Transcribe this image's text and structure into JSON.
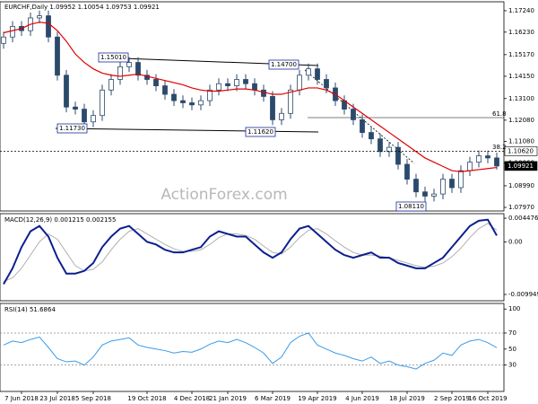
{
  "chart_data": [
    {
      "type": "candlestick",
      "title": "EURCHF,Daily  1.09952 1.10054 1.09753 1.09921",
      "color": "#2b4a6b",
      "watermark": "ActionForex.com",
      "open": [
        1.157,
        1.16,
        1.165,
        1.163,
        1.169,
        1.17,
        1.16,
        1.142,
        1.127,
        1.126,
        1.12,
        1.123,
        1.135,
        1.14,
        1.146,
        1.148,
        1.142,
        1.14,
        1.137,
        1.133,
        1.13,
        1.129,
        1.128,
        1.13,
        1.135,
        1.138,
        1.137,
        1.14,
        1.138,
        1.135,
        1.132,
        1.121,
        1.124,
        1.135,
        1.142,
        1.145,
        1.14,
        1.136,
        1.13,
        1.126,
        1.121,
        1.115,
        1.112,
        1.106,
        1.108,
        1.1,
        1.093,
        1.087,
        1.085,
        1.086,
        1.093,
        1.089,
        1.097,
        1.101,
        1.104,
        1.103
      ],
      "high": [
        1.1625,
        1.1675,
        1.1675,
        1.1715,
        1.1725,
        1.1725,
        1.1625,
        1.1445,
        1.1295,
        1.1285,
        1.1255,
        1.1375,
        1.1425,
        1.1485,
        1.1505,
        1.1505,
        1.1445,
        1.1425,
        1.1395,
        1.1355,
        1.1325,
        1.1315,
        1.1325,
        1.1375,
        1.1405,
        1.1405,
        1.1425,
        1.1425,
        1.1405,
        1.1375,
        1.1345,
        1.1265,
        1.1375,
        1.1445,
        1.1475,
        1.1475,
        1.1425,
        1.1385,
        1.1325,
        1.1285,
        1.1235,
        1.1175,
        1.1145,
        1.1105,
        1.1105,
        1.1025,
        1.0955,
        1.0895,
        1.0885,
        1.0955,
        1.0955,
        1.0995,
        1.1035,
        1.1065,
        1.1065,
        1.1055
      ],
      "low": [
        1.1545,
        1.1575,
        1.1605,
        1.1605,
        1.1665,
        1.1575,
        1.1395,
        1.1245,
        1.1235,
        1.1175,
        1.1175,
        1.1205,
        1.1325,
        1.1375,
        1.1435,
        1.1395,
        1.1375,
        1.1345,
        1.1305,
        1.1275,
        1.1265,
        1.1255,
        1.1255,
        1.1275,
        1.1325,
        1.1345,
        1.1345,
        1.1355,
        1.1325,
        1.1295,
        1.1185,
        1.1185,
        1.1215,
        1.1325,
        1.1395,
        1.1375,
        1.1335,
        1.1275,
        1.1235,
        1.1185,
        1.1125,
        1.1095,
        1.1035,
        1.1035,
        1.0975,
        1.0905,
        1.0845,
        1.0825,
        1.0825,
        1.0835,
        1.0865,
        1.0865,
        1.0945,
        1.0985,
        1.1005,
        1.0975
      ],
      "close": [
        1.16,
        1.165,
        1.163,
        1.169,
        1.17,
        1.16,
        1.142,
        1.127,
        1.126,
        1.12,
        1.123,
        1.135,
        1.14,
        1.146,
        1.148,
        1.142,
        1.14,
        1.137,
        1.133,
        1.13,
        1.129,
        1.128,
        1.13,
        1.135,
        1.138,
        1.137,
        1.14,
        1.138,
        1.135,
        1.132,
        1.121,
        1.124,
        1.135,
        1.142,
        1.145,
        1.14,
        1.136,
        1.13,
        1.126,
        1.121,
        1.115,
        1.112,
        1.106,
        1.108,
        1.1,
        1.093,
        1.087,
        1.085,
        1.086,
        1.093,
        1.089,
        1.097,
        1.101,
        1.104,
        1.103,
        1.0992
      ],
      "ma": {
        "color": "#e00000",
        "values": [
          1.162,
          1.163,
          1.164,
          1.166,
          1.167,
          1.1665,
          1.163,
          1.158,
          1.152,
          1.148,
          1.145,
          1.143,
          1.142,
          1.1415,
          1.142,
          1.1425,
          1.1415,
          1.1405,
          1.1395,
          1.1385,
          1.1375,
          1.136,
          1.135,
          1.1345,
          1.1345,
          1.135,
          1.1355,
          1.1355,
          1.135,
          1.134,
          1.133,
          1.133,
          1.134,
          1.135,
          1.136,
          1.136,
          1.135,
          1.133,
          1.13,
          1.127,
          1.124,
          1.121,
          1.118,
          1.115,
          1.112,
          1.109,
          1.106,
          1.103,
          1.101,
          1.099,
          1.097,
          1.0965,
          1.097,
          1.0975,
          1.098,
          1.0985
        ]
      },
      "ylim": [
        1.078,
        1.1766
      ],
      "yticks": [
        {
          "value": 1.0797,
          "label": "1.07970"
        },
        {
          "value": 1.0899,
          "label": "1.08990"
        },
        {
          "value": 1.1006,
          "label": "1.10060"
        },
        {
          "value": 1.1108,
          "label": "1.11080"
        },
        {
          "value": 1.1208,
          "label": "1.12080"
        },
        {
          "value": 1.131,
          "label": "1.13100"
        },
        {
          "value": 1.1415,
          "label": "1.14150"
        },
        {
          "value": 1.1517,
          "label": "1.15170"
        },
        {
          "value": 1.1623,
          "label": "1.16230"
        },
        {
          "value": 1.1724,
          "label": "1.17240"
        }
      ],
      "price_labels": [
        {
          "value": 1.1062,
          "label": "1.10620"
        },
        {
          "value": 1.09921,
          "label": "1.09921"
        }
      ],
      "annotations": [
        "1.15010",
        "1.14700",
        "1.11730",
        "1.11620",
        "1.08110",
        "61.8",
        "38.2"
      ]
    },
    {
      "type": "line",
      "title": "MACD(12,26,9) 0.001215 0.002155",
      "series": [
        {
          "color": "#0b1f8f",
          "values": [
            -0.008,
            -0.005,
            -0.001,
            0.002,
            0.003,
            0.001,
            -0.003,
            -0.006,
            -0.006,
            -0.0055,
            -0.004,
            -0.001,
            0.001,
            0.0025,
            0.003,
            0.0015,
            0.0,
            -0.0005,
            -0.0015,
            -0.002,
            -0.002,
            -0.0015,
            -0.001,
            0.001,
            0.002,
            0.0015,
            0.001,
            0.001,
            -0.0005,
            -0.002,
            -0.003,
            -0.002,
            0.0005,
            0.0025,
            0.003,
            0.0015,
            0.0,
            -0.0015,
            -0.0025,
            -0.003,
            -0.0025,
            -0.002,
            -0.003,
            -0.003,
            -0.004,
            -0.0045,
            -0.005,
            -0.005,
            -0.004,
            -0.003,
            -0.001,
            0.001,
            0.003,
            0.004,
            0.0042,
            0.0012
          ]
        },
        {
          "color": "#b0b0b0",
          "values": [
            -0.0075,
            -0.0068,
            -0.005,
            -0.0025,
            0.0,
            0.0015,
            0.0005,
            -0.002,
            -0.0045,
            -0.0055,
            -0.0052,
            -0.0038,
            -0.0015,
            0.0005,
            0.002,
            0.0025,
            0.0015,
            0.0005,
            -0.0005,
            -0.0013,
            -0.0018,
            -0.0018,
            -0.0015,
            -0.0005,
            0.0008,
            0.0015,
            0.0015,
            0.0012,
            0.0005,
            -0.0008,
            -0.002,
            -0.0023,
            -0.001,
            0.0008,
            0.0022,
            0.0025,
            0.0015,
            0.0002,
            -0.001,
            -0.002,
            -0.0025,
            -0.0025,
            -0.0027,
            -0.003,
            -0.0035,
            -0.004,
            -0.0045,
            -0.0048,
            -0.0046,
            -0.004,
            -0.0028,
            -0.0012,
            0.0008,
            0.0025,
            0.0035,
            0.0022
          ]
        }
      ],
      "ylim": [
        -0.01114,
        0.00533
      ],
      "yticks": [
        0.004476,
        {
          "value": 0,
          "label": "0.00"
        },
        -0.009949
      ]
    },
    {
      "type": "line",
      "title": "RSI(14) 51.6864",
      "series": [
        {
          "color": "#3a9be8",
          "values": [
            55,
            60,
            58,
            62,
            65,
            52,
            38,
            34,
            35,
            30,
            40,
            55,
            60,
            62,
            64,
            55,
            52,
            50,
            48,
            45,
            47,
            46,
            50,
            56,
            60,
            58,
            62,
            58,
            52,
            45,
            32,
            40,
            58,
            66,
            70,
            55,
            50,
            45,
            42,
            38,
            35,
            40,
            32,
            35,
            30,
            28,
            25,
            32,
            36,
            45,
            42,
            55,
            60,
            62,
            58,
            51.69
          ]
        }
      ],
      "ylim": [
        -3,
        107
      ],
      "yticks": [
        100,
        70,
        50,
        30
      ],
      "levels": [
        70,
        30
      ],
      "categories": [
        null,
        null,
        "7 Jun 2018",
        null,
        null,
        null,
        "23 Jul 2018",
        null,
        null,
        null,
        "5 Sep 2018",
        null,
        null,
        null,
        null,
        null,
        "19 Oct 2018",
        null,
        null,
        null,
        null,
        "4 Dec 2018",
        null,
        null,
        null,
        "21 Jan 2019",
        null,
        null,
        null,
        null,
        "6 Mar 2019",
        null,
        null,
        null,
        null,
        "19 Apr 2019",
        null,
        null,
        null,
        null,
        "4 Jun 2019",
        null,
        null,
        null,
        null,
        "18 Jul 2019",
        null,
        null,
        null,
        null,
        "2 Sep 2019",
        null,
        null,
        null,
        "16 Oct 2019",
        null
      ]
    }
  ]
}
